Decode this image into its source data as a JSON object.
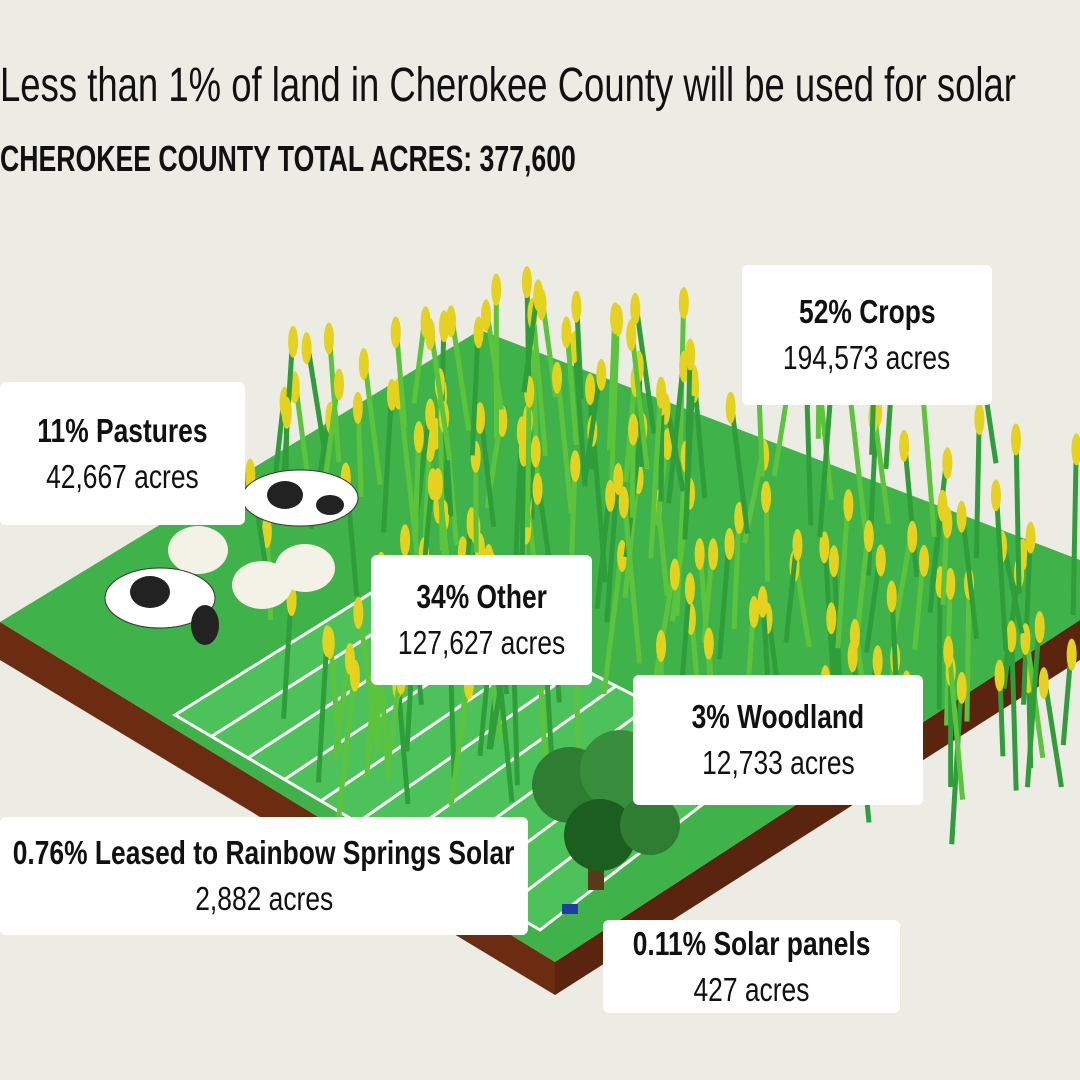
{
  "header": {
    "title": "Less than 1% of land in Cherokee County will be used for solar",
    "subtitle": "CHEROKEE COUNTY TOTAL ACRES:  377,600"
  },
  "callouts": [
    {
      "label": "52% Crops",
      "acres": "194,573 acres"
    },
    {
      "label": "11% Pastures",
      "acres": "42,667 acres"
    },
    {
      "label": "34% Other",
      "acres": "127,627 acres"
    },
    {
      "label": "3% Woodland",
      "acres": "12,733 acres"
    },
    {
      "label": "0.76% Leased to Rainbow Springs Solar",
      "acres": "2,882 acres"
    },
    {
      "label": "0.11% Solar panels",
      "acres": "427 acres"
    }
  ]
}
